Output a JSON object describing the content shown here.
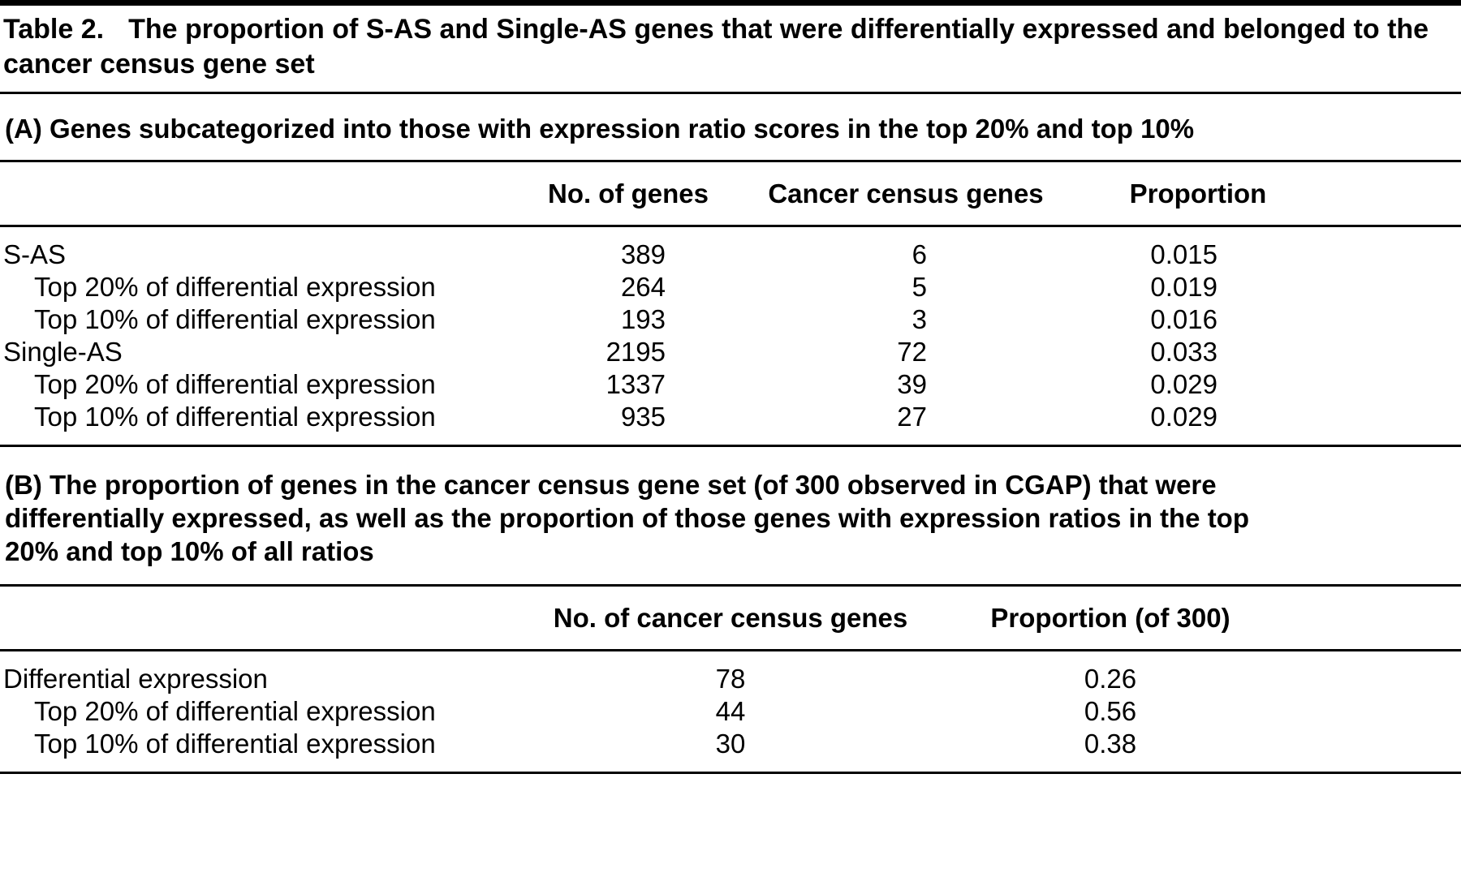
{
  "title": {
    "label": "Table 2.",
    "text": "The proportion of S-AS and Single-AS genes that were differentially expressed and belonged to the cancer census gene set"
  },
  "section_a": {
    "heading": "(A) Genes subcategorized into those with expression ratio scores in the top 20% and top 10%",
    "columns": {
      "label": "",
      "no_of_genes": "No. of genes",
      "cancer_census_genes": "Cancer census genes",
      "proportion": "Proportion"
    },
    "rows": [
      {
        "label": "S-AS",
        "no_of_genes": "389",
        "cancer_census_genes": "6",
        "proportion": "0.015"
      },
      {
        "label": "Top 20% of differential expression",
        "no_of_genes": "264",
        "cancer_census_genes": "5",
        "proportion": "0.019"
      },
      {
        "label": "Top 10% of differential expression",
        "no_of_genes": "193",
        "cancer_census_genes": "3",
        "proportion": "0.016"
      },
      {
        "label": "Single-AS",
        "no_of_genes": "2195",
        "cancer_census_genes": "72",
        "proportion": "0.033"
      },
      {
        "label": "Top 20% of differential expression",
        "no_of_genes": "1337",
        "cancer_census_genes": "39",
        "proportion": "0.029"
      },
      {
        "label": "Top 10% of differential expression",
        "no_of_genes": "935",
        "cancer_census_genes": "27",
        "proportion": "0.029"
      }
    ]
  },
  "section_b": {
    "heading": "(B) The proportion of genes in the cancer census gene set (of 300 observed in CGAP) that were differentially expressed, as well as the proportion of those genes with expression ratios in the top 20% and top 10% of all ratios",
    "columns": {
      "label": "",
      "no_of_cancer_census_genes": "No. of cancer census genes",
      "proportion": "Proportion (of 300)"
    },
    "rows": [
      {
        "label": "Differential expression",
        "no_of_cancer_census_genes": "78",
        "proportion": "0.26"
      },
      {
        "label": "Top 20% of differential expression",
        "no_of_cancer_census_genes": "44",
        "proportion": "0.56"
      },
      {
        "label": "Top 10% of differential expression",
        "no_of_cancer_census_genes": "30",
        "proportion": "0.38"
      }
    ]
  },
  "colors": {
    "text": "#000000",
    "background": "#ffffff",
    "rule": "#000000"
  }
}
